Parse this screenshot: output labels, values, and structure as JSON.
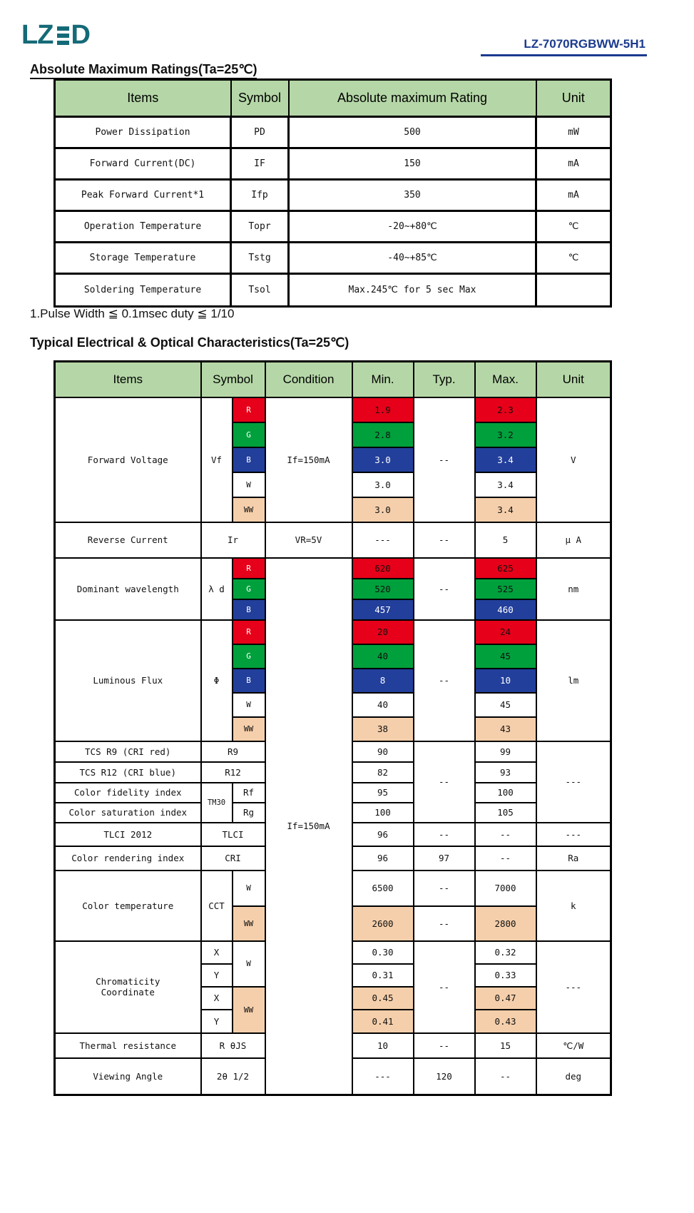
{
  "header": {
    "logo_lz": "LZ",
    "logo_d": "D",
    "product_code": "LZ-7070RGBWW-5H1"
  },
  "sections": {
    "abs_max_title": "Absolute Maximum Ratings(Ta=25℃)",
    "pulse_note": "1.Pulse Width ≦ 0.1msec duty ≦ 1/10",
    "electrical_title": "Typical Electrical & Optical Characteristics(Ta=25℃)"
  },
  "colors": {
    "brand_teal": "#156a77",
    "brand_blue": "#1a3a8f",
    "header_green": "#b5d7a7",
    "cell_red": "#e60019",
    "cell_green": "#00a03c",
    "cell_blue": "#223f9b",
    "cell_peach": "#f5cfab"
  },
  "abs_max_table": {
    "headers": [
      {
        "t": "Items"
      },
      {
        "t": "Symbol"
      },
      {
        "t": "Absolute maximum Rating"
      },
      {
        "t": "Unit"
      }
    ],
    "rows": [
      [
        {
          "t": "Power Dissipation"
        },
        {
          "t": "PD"
        },
        {
          "t": "500"
        },
        {
          "t": "mW"
        }
      ],
      [
        {
          "t": "Forward Current(DC)"
        },
        {
          "t": "IF"
        },
        {
          "t": "150"
        },
        {
          "t": "mA"
        }
      ],
      [
        {
          "t": "Peak Forward Current*1"
        },
        {
          "t": "Ifp"
        },
        {
          "t": "350"
        },
        {
          "t": "mA"
        }
      ],
      [
        {
          "t": "Operation Temperature"
        },
        {
          "t": "Topr"
        },
        {
          "t": "-20~+80℃"
        },
        {
          "t": "℃"
        }
      ],
      [
        {
          "t": "Storage Temperature"
        },
        {
          "t": "Tstg"
        },
        {
          "t": "-40~+85℃"
        },
        {
          "t": "℃"
        }
      ],
      [
        {
          "t": "Soldering Temperature"
        },
        {
          "t": "Tsol"
        },
        {
          "t": "Max.245℃ for 5 sec Max"
        },
        {
          "t": ""
        }
      ]
    ]
  },
  "characteristics_table": {
    "headers": [
      {
        "t": "Items"
      },
      {
        "t": "Symbol",
        "cs": 2
      },
      {
        "t": "Condition"
      },
      {
        "t": "Min."
      },
      {
        "t": "Typ."
      },
      {
        "t": "Max."
      },
      {
        "t": "Unit"
      }
    ],
    "rows": [
      [
        {
          "t": "Forward Voltage",
          "rs": 5
        },
        {
          "t": "Vf",
          "rs": 5
        },
        {
          "t": "R",
          "cls": "red lbl wt"
        },
        {
          "t": "If=150mA",
          "rs": 5
        },
        {
          "t": "1.9",
          "cls": "red"
        },
        {
          "t": "--",
          "rs": 5
        },
        {
          "t": "2.3",
          "cls": "red"
        },
        {
          "t": "V",
          "rs": 5
        }
      ],
      [
        {
          "t": "G",
          "cls": "green lbl wt"
        },
        {
          "t": "2.8",
          "cls": "green"
        },
        {
          "t": "3.2",
          "cls": "green"
        }
      ],
      [
        {
          "t": "B",
          "cls": "blue lbl"
        },
        {
          "t": "3.0",
          "cls": "blue"
        },
        {
          "t": "3.4",
          "cls": "blue"
        }
      ],
      [
        {
          "t": "W",
          "cls": "lbl"
        },
        {
          "t": "3.0"
        },
        {
          "t": "3.4"
        }
      ],
      [
        {
          "t": "WW",
          "cls": "peach lbl"
        },
        {
          "t": "3.0",
          "cls": "peach"
        },
        {
          "t": "3.4",
          "cls": "peach"
        }
      ],
      [
        {
          "t": "Reverse Current"
        },
        {
          "t": "Ir",
          "cs": 2
        },
        {
          "t": "VR=5V"
        },
        {
          "t": "---"
        },
        {
          "t": "--"
        },
        {
          "t": "5"
        },
        {
          "t": "μ A"
        }
      ],
      [
        {
          "t": "Dominant wavelength",
          "rs": 3
        },
        {
          "t": "λ d",
          "rs": 3
        },
        {
          "t": "R",
          "cls": "red lbl wt"
        },
        {
          "t": "If=150mA",
          "rs": 22
        },
        {
          "t": "620",
          "cls": "red"
        },
        {
          "t": "--",
          "rs": 3
        },
        {
          "t": "625",
          "cls": "red"
        },
        {
          "t": "nm",
          "rs": 3
        }
      ],
      [
        {
          "t": "G",
          "cls": "green lbl wt"
        },
        {
          "t": "520",
          "cls": "green"
        },
        {
          "t": "525",
          "cls": "green"
        }
      ],
      [
        {
          "t": "B",
          "cls": "blue lbl"
        },
        {
          "t": "457",
          "cls": "blue"
        },
        {
          "t": "460",
          "cls": "blue"
        }
      ],
      [
        {
          "t": "Luminous Flux",
          "rs": 5
        },
        {
          "t": "Φ",
          "rs": 5
        },
        {
          "t": "R",
          "cls": "red lbl wt"
        },
        {
          "t": "20",
          "cls": "red"
        },
        {
          "t": "--",
          "rs": 5
        },
        {
          "t": "24",
          "cls": "red"
        },
        {
          "t": "lm",
          "rs": 5
        }
      ],
      [
        {
          "t": "G",
          "cls": "green lbl wt"
        },
        {
          "t": "40",
          "cls": "green"
        },
        {
          "t": "45",
          "cls": "green"
        }
      ],
      [
        {
          "t": "B",
          "cls": "blue lbl"
        },
        {
          "t": "8",
          "cls": "blue"
        },
        {
          "t": "10",
          "cls": "blue"
        }
      ],
      [
        {
          "t": "W",
          "cls": "lbl"
        },
        {
          "t": "40"
        },
        {
          "t": "45"
        }
      ],
      [
        {
          "t": "WW",
          "cls": "peach lbl"
        },
        {
          "t": "38",
          "cls": "peach"
        },
        {
          "t": "43",
          "cls": "peach"
        }
      ],
      [
        {
          "t": "TCS R9 (CRI red)"
        },
        {
          "t": "R9",
          "cs": 2
        },
        {
          "t": "90"
        },
        {
          "t": "--",
          "rs": 4
        },
        {
          "t": "99"
        },
        {
          "t": "---",
          "rs": 4
        }
      ],
      [
        {
          "t": "TCS R12 (CRI blue)"
        },
        {
          "t": "R12",
          "cs": 2
        },
        {
          "t": "82"
        },
        {
          "t": "93"
        }
      ],
      [
        {
          "t": "Color fidelity index"
        },
        {
          "t": "TM30",
          "rs": 2,
          "cls": "sm"
        },
        {
          "t": "Rf"
        },
        {
          "t": "95"
        },
        {
          "t": "100"
        }
      ],
      [
        {
          "t": "Color saturation index"
        },
        {
          "t": "Rg"
        },
        {
          "t": "100"
        },
        {
          "t": "105"
        }
      ],
      [
        {
          "t": "TLCI 2012"
        },
        {
          "t": "TLCI",
          "cs": 2
        },
        {
          "t": "96"
        },
        {
          "t": "--"
        },
        {
          "t": "--"
        },
        {
          "t": "---"
        }
      ],
      [
        {
          "t": "Color rendering index"
        },
        {
          "t": "CRI",
          "cs": 2
        },
        {
          "t": "96"
        },
        {
          "t": "97"
        },
        {
          "t": "--"
        },
        {
          "t": "Ra"
        }
      ],
      [
        {
          "t": "Color temperature",
          "rs": 2
        },
        {
          "t": "CCT",
          "rs": 2
        },
        {
          "t": "W",
          "cls": "lbl"
        },
        {
          "t": "6500"
        },
        {
          "t": "--"
        },
        {
          "t": "7000"
        },
        {
          "t": "k",
          "rs": 2
        }
      ],
      [
        {
          "t": "WW",
          "cls": "peach lbl"
        },
        {
          "t": "2600",
          "cls": "peach"
        },
        {
          "t": "--"
        },
        {
          "t": "2800",
          "cls": "peach"
        }
      ],
      [
        {
          "t": "Chromaticity\nCoordinate",
          "rs": 4,
          "cls": "pre"
        },
        {
          "t": "X"
        },
        {
          "t": "W",
          "rs": 2,
          "cls": "lbl"
        },
        {
          "t": "0.30"
        },
        {
          "t": "--",
          "rs": 4
        },
        {
          "t": "0.32"
        },
        {
          "t": "---",
          "rs": 4
        }
      ],
      [
        {
          "t": "Y"
        },
        {
          "t": "0.31"
        },
        {
          "t": "0.33"
        }
      ],
      [
        {
          "t": "X"
        },
        {
          "t": "WW",
          "rs": 2,
          "cls": "peach lbl"
        },
        {
          "t": "0.45",
          "cls": "peach"
        },
        {
          "t": "0.47",
          "cls": "peach"
        }
      ],
      [
        {
          "t": "Y"
        },
        {
          "t": "0.41",
          "cls": "peach"
        },
        {
          "t": "0.43",
          "cls": "peach"
        }
      ],
      [
        {
          "t": "Thermal resistance"
        },
        {
          "t": "R θJS",
          "cs": 2
        },
        {
          "t": "10"
        },
        {
          "t": "--"
        },
        {
          "t": "15"
        },
        {
          "t": "℃/W"
        }
      ],
      [
        {
          "t": "Viewing Angle"
        },
        {
          "t": "2θ 1/2",
          "cs": 2
        },
        {
          "t": "---"
        },
        {
          "t": "120"
        },
        {
          "t": "--"
        },
        {
          "t": "deg"
        }
      ]
    ]
  }
}
